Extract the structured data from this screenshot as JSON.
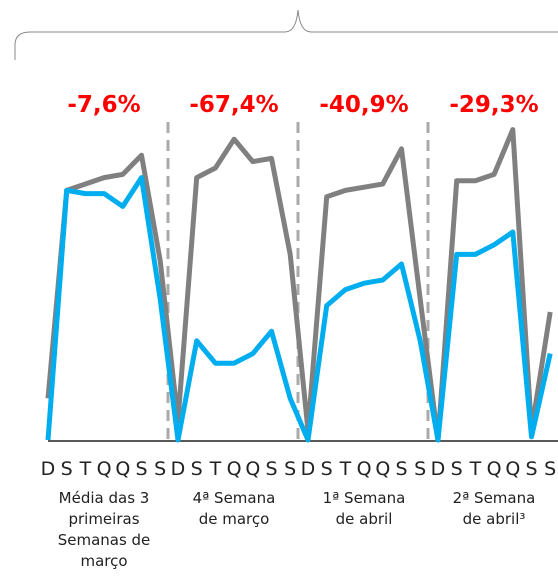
{
  "chart_data": {
    "type": "line",
    "categories": [
      "D",
      "S",
      "T",
      "Q",
      "Q",
      "S",
      "S",
      "D",
      "S",
      "T",
      "Q",
      "Q",
      "S",
      "S",
      "D",
      "S",
      "T",
      "Q",
      "Q",
      "S",
      "S",
      "D",
      "S",
      "T",
      "Q",
      "Q",
      "S",
      "S"
    ],
    "series": [
      {
        "color": "#808080",
        "values": [
          13,
          78,
          80,
          82,
          83,
          89,
          56,
          6,
          82,
          85,
          94,
          87,
          88,
          58,
          3,
          76,
          78,
          79,
          80,
          91,
          44,
          0,
          81,
          81,
          83,
          97,
          3,
          40
        ]
      },
      {
        "color": "#00aeef",
        "values": [
          0,
          78,
          77,
          77,
          73,
          82,
          44,
          0,
          31,
          24,
          24,
          27,
          34,
          13,
          0,
          42,
          47,
          49,
          50,
          55,
          31,
          0,
          58,
          58,
          61,
          65,
          1,
          27
        ]
      }
    ],
    "ylim": [
      0,
      100
    ],
    "groups": [
      {
        "change": "-7,6%",
        "label_lines": [
          "Média das 3",
          "primeiras",
          "Semanas de",
          "março"
        ]
      },
      {
        "change": "-67,4%",
        "label_lines": [
          "4ª Semana",
          "de março"
        ]
      },
      {
        "change": "-40,9%",
        "label_lines": [
          "1ª Semana",
          "de abril"
        ]
      },
      {
        "change": "-29,3%",
        "label_lines": [
          "2ª Semana",
          "de abril³"
        ]
      }
    ]
  }
}
